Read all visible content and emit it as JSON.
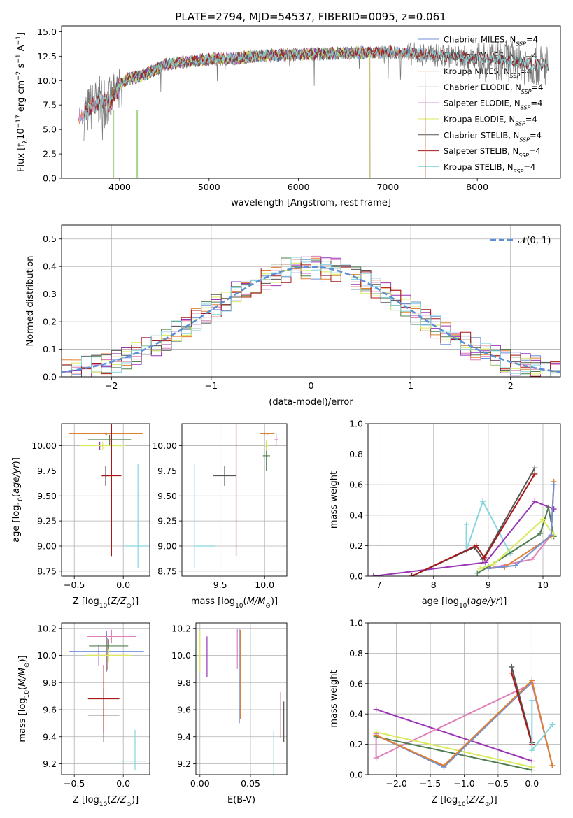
{
  "figure": {
    "title": "PLATE=2794, MJD=54537, FIBERID=0095, z=0.061"
  },
  "colors": {
    "Chabrier MILES": "#6f8fd9",
    "Salpeter MILES": "#e07fb8",
    "Kroupa MILES": "#e08030",
    "Chabrier ELODIE": "#4f7f4f",
    "Salpeter ELODIE": "#9a35b5",
    "Kroupa ELODIE": "#d9ea5a",
    "Chabrier STELIB": "#555555",
    "Salpeter STELIB": "#a81818",
    "Kroupa STELIB": "#85d6de",
    "data": "#777777",
    "gauss": "#5b8fd6"
  },
  "chart_data": [
    {
      "id": "spectrum",
      "type": "line",
      "title": "PLATE=2794, MJD=54537, FIBERID=0095, z=0.061",
      "xlabel": "wavelength [Angstrom, rest frame]",
      "ylabel_parts": [
        "Flux [f",
        "λ",
        "10",
        "−17",
        " erg cm",
        "−2",
        " s",
        "−1",
        " A",
        "−1",
        "]"
      ],
      "xlim": [
        3350,
        8930
      ],
      "ylim": [
        0,
        15.6
      ],
      "xticks": [
        4000,
        5000,
        6000,
        7000,
        8000
      ],
      "yticks": [
        0.0,
        2.5,
        5.0,
        7.5,
        10.0,
        12.5,
        15.0
      ],
      "grid": false,
      "legend_position": "top-right",
      "legend": [
        {
          "label": "Chabrier MILES",
          "suffix": "=4"
        },
        {
          "label": "Salpeter MILES",
          "suffix": "=4"
        },
        {
          "label": "Kroupa MILES",
          "suffix": "=4"
        },
        {
          "label": "Chabrier ELODIE",
          "suffix": "=4"
        },
        {
          "label": "Salpeter ELODIE",
          "suffix": "=4"
        },
        {
          "label": "Kroupa ELODIE",
          "suffix": "=4"
        },
        {
          "label": "Chabrier STELIB",
          "suffix": "=4"
        },
        {
          "label": "Salpeter STELIB",
          "suffix": "=4"
        },
        {
          "label": "Kroupa STELIB",
          "suffix": "=4"
        }
      ],
      "legend_n": "N",
      "legend_sub": "SSP",
      "continuum": [
        [
          3600,
          6.4
        ],
        [
          3700,
          7.5
        ],
        [
          3800,
          8.0
        ],
        [
          3900,
          7.8
        ],
        [
          4000,
          9.6
        ],
        [
          4100,
          10.2
        ],
        [
          4200,
          10.4
        ],
        [
          4300,
          10.7
        ],
        [
          4500,
          11.6
        ],
        [
          4700,
          11.9
        ],
        [
          5000,
          12.2
        ],
        [
          5200,
          12.2
        ],
        [
          5500,
          12.5
        ],
        [
          6000,
          12.7
        ],
        [
          6500,
          12.8
        ],
        [
          7000,
          12.9
        ],
        [
          7500,
          12.6
        ],
        [
          8000,
          12.3
        ],
        [
          8500,
          11.8
        ],
        [
          8800,
          11.5
        ]
      ],
      "model_ranges": {
        "MILES": [
          3540,
          7420
        ],
        "ELODIE": [
          3900,
          6800
        ],
        "STELIB": [
          3600,
          8800
        ]
      }
    },
    {
      "id": "residuals",
      "type": "line",
      "xlabel": "(data-model)/error",
      "ylabel": "Normed distribution",
      "xlim": [
        -2.5,
        2.5
      ],
      "ylim": [
        0,
        0.55
      ],
      "xticks": [
        -2,
        -1,
        0,
        1,
        2
      ],
      "yticks": [
        0.0,
        0.1,
        0.2,
        0.3,
        0.4,
        0.5
      ],
      "grid": true,
      "legend_position": "top-right",
      "legend": [
        "𝒩(0, 1)"
      ],
      "bin_width": 0.1
    },
    {
      "id": "z-age",
      "type": "scatter",
      "xlabel": "Z [log10(Z/Z⊙)]",
      "ylabel": "age  [log10(age/yr)]",
      "xlim": [
        -0.63,
        0.27
      ],
      "ylim": [
        8.7,
        10.22
      ],
      "xticks": [
        -0.5,
        0.0
      ],
      "yticks": [
        8.75,
        9.0,
        9.25,
        9.5,
        9.75,
        10.0
      ],
      "grid": true,
      "points": [
        {
          "model": "Chabrier MILES",
          "x": -0.17,
          "xerr": 0.37,
          "y": 10.12,
          "yerr": 0.01
        },
        {
          "model": "Salpeter MILES",
          "x": -0.18,
          "xerr": 0.28,
          "y": 10.12,
          "yerr": 0.01
        },
        {
          "model": "Kroupa MILES",
          "x": -0.18,
          "xerr": 0.38,
          "y": 10.12,
          "yerr": 0.01
        },
        {
          "model": "Chabrier ELODIE",
          "x": -0.14,
          "xerr": 0.22,
          "y": 10.06,
          "yerr": 0.05
        },
        {
          "model": "Salpeter ELODIE",
          "x": -0.24,
          "xerr": 0.01,
          "y": 10.0,
          "yerr": 0.04
        },
        {
          "model": "Kroupa ELODIE",
          "x": -0.21,
          "xerr": 0.23,
          "y": 10.0,
          "yerr": 0.04
        },
        {
          "model": "Chabrier STELIB",
          "x": -0.18,
          "xerr": 0.04,
          "y": 9.7,
          "yerr": 0.1
        },
        {
          "model": "Salpeter STELIB",
          "x": -0.12,
          "xerr": 0.1,
          "y": 9.7,
          "yerr": 0.8
        },
        {
          "model": "Kroupa STELIB",
          "x": 0.13,
          "xerr": 0.12,
          "y": 9.0,
          "yerr": 0.0
        },
        {
          "model": "Kroupa STELIB",
          "x": 0.15,
          "xerr": 0.0,
          "y": 9.3,
          "yerr": 0.52
        }
      ]
    },
    {
      "id": "mass-age",
      "type": "scatter",
      "xlabel": "mass [log10(M/M⊙)]",
      "ylabel": "",
      "xlim": [
        9.07,
        10.25
      ],
      "ylim": [
        8.7,
        10.22
      ],
      "xticks": [
        9.5,
        10.0
      ],
      "yticks": [
        8.75,
        9.0,
        9.25,
        9.5,
        9.75,
        10.0
      ],
      "grid": true,
      "points": [
        {
          "model": "Chabrier MILES",
          "x": 10.0,
          "xerr": 0.03,
          "y": 10.12,
          "yerr": 0.01
        },
        {
          "model": "Salpeter MILES",
          "x": 10.13,
          "xerr": 0.02,
          "y": 10.06,
          "yerr": 0.06
        },
        {
          "model": "Kroupa MILES",
          "x": 10.03,
          "xerr": 0.08,
          "y": 10.12,
          "yerr": 0.01
        },
        {
          "model": "Chabrier ELODIE",
          "x": 10.02,
          "xerr": 0.04,
          "y": 9.9,
          "yerr": 0.15
        },
        {
          "model": "Salpeter ELODIE",
          "x": 10.02,
          "xerr": 0.02,
          "y": 10.0,
          "yerr": 0.02
        },
        {
          "model": "Kroupa ELODIE",
          "x": 10.02,
          "xerr": 0.02,
          "y": 10.0,
          "yerr": 0.05
        },
        {
          "model": "Chabrier STELIB",
          "x": 9.55,
          "xerr": 0.13,
          "y": 9.7,
          "yerr": 0.1
        },
        {
          "model": "Salpeter STELIB",
          "x": 9.68,
          "xerr": 0.0,
          "y": 9.7,
          "yerr": 0.8
        },
        {
          "model": "Kroupa STELIB",
          "x": 9.21,
          "xerr": 0.0,
          "y": 9.3,
          "yerr": 0.52
        },
        {
          "model": "Kroupa STELIB",
          "x": 9.33,
          "xerr": 0.11,
          "y": 9.0,
          "yerr": 0.0
        }
      ]
    },
    {
      "id": "weight-age",
      "type": "line",
      "xlabel": "age  [log10(age/yr)]",
      "ylabel": "mass weight",
      "xlim": [
        6.8,
        10.32
      ],
      "ylim": [
        0,
        1.0
      ],
      "xticks": [
        7,
        8,
        9,
        10
      ],
      "yticks": [
        0.0,
        0.2,
        0.4,
        0.6,
        0.8,
        1.0
      ],
      "grid": true,
      "series": [
        {
          "model": "Kroupa STELIB",
          "x": [
            8.6,
            8.6,
            8.9,
            9.4
          ],
          "y": [
            0.34,
            0.17,
            0.49,
            0.15
          ]
        },
        {
          "model": "Salpeter ELODIE",
          "x": [
            6.9,
            8.95,
            9.85,
            10.2
          ],
          "y": [
            0.0,
            0.09,
            0.49,
            0.44
          ]
        },
        {
          "model": "Chabrier STELIB",
          "x": [
            7.6,
            8.75,
            8.9,
            9.85
          ],
          "y": [
            0.0,
            0.19,
            0.11,
            0.71
          ]
        },
        {
          "model": "Salpeter STELIB",
          "x": [
            7.6,
            8.78,
            8.93,
            9.85
          ],
          "y": [
            0.0,
            0.2,
            0.12,
            0.67
          ]
        },
        {
          "model": "Chabrier ELODIE",
          "x": [
            8.8,
            9.0,
            9.95,
            10.1,
            10.2
          ],
          "y": [
            0.02,
            0.06,
            0.28,
            0.45,
            0.26
          ]
        },
        {
          "model": "Kroupa ELODIE",
          "x": [
            8.85,
            9.1,
            10.0,
            10.2
          ],
          "y": [
            0.05,
            0.08,
            0.37,
            0.27
          ]
        },
        {
          "model": "Salpeter MILES",
          "x": [
            9.0,
            9.8,
            10.15,
            10.2
          ],
          "y": [
            0.05,
            0.11,
            0.27,
            0.6
          ]
        },
        {
          "model": "Kroupa MILES",
          "x": [
            9.0,
            9.3,
            10.15,
            10.2
          ],
          "y": [
            0.05,
            0.06,
            0.26,
            0.62
          ]
        },
        {
          "model": "Chabrier MILES",
          "x": [
            9.0,
            9.5,
            10.15,
            10.2
          ],
          "y": [
            0.05,
            0.07,
            0.27,
            0.6
          ]
        }
      ]
    },
    {
      "id": "z-mass",
      "type": "scatter",
      "xlabel": "Z [log10(Z/Z⊙)]",
      "ylabel": "mass [log10(M/M⊙)]",
      "xlim": [
        -0.63,
        0.27
      ],
      "ylim": [
        9.12,
        10.24
      ],
      "xticks": [
        -0.5,
        0.0
      ],
      "yticks": [
        9.2,
        9.4,
        9.6,
        9.8,
        10.0,
        10.2
      ],
      "grid": true,
      "points": [
        {
          "model": "Chabrier MILES",
          "x": -0.17,
          "xerr": 0.38,
          "y": 10.03,
          "yerr": 0.15
        },
        {
          "model": "Salpeter MILES",
          "x": -0.12,
          "xerr": 0.25,
          "y": 10.14,
          "yerr": 0.05
        },
        {
          "model": "Kroupa MILES",
          "x": -0.16,
          "xerr": 0.22,
          "y": 10.01,
          "yerr": 0.12
        },
        {
          "model": "Chabrier ELODIE",
          "x": -0.15,
          "xerr": 0.2,
          "y": 10.07,
          "yerr": 0.05
        },
        {
          "model": "Salpeter ELODIE",
          "x": -0.25,
          "xerr": 0.0,
          "y": 10.0,
          "yerr": 0.08
        },
        {
          "model": "Kroupa ELODIE",
          "x": -0.15,
          "xerr": 0.23,
          "y": 10.0,
          "yerr": 0.05
        },
        {
          "model": "Chabrier STELIB",
          "x": -0.2,
          "xerr": 0.16,
          "y": 9.56,
          "yerr": 0.2
        },
        {
          "model": "Salpeter STELIB",
          "x": -0.2,
          "xerr": 0.16,
          "y": 9.68,
          "yerr": 0.25
        },
        {
          "model": "Kroupa STELIB",
          "x": 0.1,
          "xerr": 0.12,
          "y": 9.22,
          "yerr": 0.0
        },
        {
          "model": "Kroupa STELIB",
          "x": 0.12,
          "xerr": 0.0,
          "y": 9.3,
          "yerr": 0.15
        }
      ]
    },
    {
      "id": "ebv-mass",
      "type": "scatter",
      "xlabel": "E(B-V)",
      "ylabel": "",
      "xlim": [
        -0.004,
        0.086
      ],
      "ylim": [
        9.12,
        10.24
      ],
      "xticks": [
        0.0,
        0.05
      ],
      "xtick_labels": [
        "0.00",
        "0.05"
      ],
      "yticks": [
        9.2,
        9.4,
        9.6,
        9.8,
        10.0,
        10.2
      ],
      "grid": true,
      "points": [
        {
          "model": "Kroupa ELODIE",
          "x": 0.0,
          "xerr": 0,
          "y": 10.03,
          "yerr": 0.15
        },
        {
          "model": "Salpeter ELODIE",
          "x": 0.007,
          "xerr": 0,
          "y": 9.99,
          "yerr": 0.15
        },
        {
          "model": "Salpeter MILES",
          "x": 0.037,
          "xerr": 0,
          "y": 10.05,
          "yerr": 0.15
        },
        {
          "model": "Chabrier MILES",
          "x": 0.039,
          "xerr": 0,
          "y": 9.85,
          "yerr": 0.35
        },
        {
          "model": "Kroupa MILES",
          "x": 0.04,
          "xerr": 0,
          "y": 9.86,
          "yerr": 0.33
        },
        {
          "model": "Kroupa STELIB",
          "x": 0.073,
          "xerr": 0,
          "y": 9.28,
          "yerr": 0.16
        },
        {
          "model": "Salpeter STELIB",
          "x": 0.08,
          "xerr": 0,
          "y": 9.56,
          "yerr": 0.17
        },
        {
          "model": "Chabrier STELIB",
          "x": 0.083,
          "xerr": 0,
          "y": 9.51,
          "yerr": 0.15
        }
      ]
    },
    {
      "id": "weight-z",
      "type": "line",
      "xlabel": "Z [log10(Z/Z⊙)]",
      "ylabel": "mass weight",
      "xlim": [
        -2.42,
        0.42
      ],
      "ylim": [
        0,
        1.0
      ],
      "xticks": [
        -2.0,
        -1.5,
        -1.0,
        -0.5,
        0.0
      ],
      "yticks": [
        0.0,
        0.2,
        0.4,
        0.6,
        0.8,
        1.0
      ],
      "grid": true,
      "series": [
        {
          "model": "Salpeter ELODIE",
          "x": [
            -2.3,
            0.0
          ],
          "y": [
            0.43,
            0.09
          ]
        },
        {
          "model": "Salpeter MILES",
          "x": [
            -2.3,
            -2.3,
            0.0,
            0.3
          ],
          "y": [
            0.27,
            0.11,
            0.6,
            0.06
          ]
        },
        {
          "model": "Kroupa ELODIE",
          "x": [
            -2.3,
            0.0
          ],
          "y": [
            0.28,
            0.05
          ]
        },
        {
          "model": "Chabrier ELODIE",
          "x": [
            -2.3,
            0.0
          ],
          "y": [
            0.25,
            0.03
          ]
        },
        {
          "model": "Chabrier MILES",
          "x": [
            -2.3,
            -1.3,
            0.0,
            0.3
          ],
          "y": [
            0.26,
            0.05,
            0.61,
            0.06
          ]
        },
        {
          "model": "Kroupa MILES",
          "x": [
            -2.3,
            -1.3,
            0.0,
            0.3
          ],
          "y": [
            0.26,
            0.06,
            0.62,
            0.06
          ]
        },
        {
          "model": "Chabrier STELIB",
          "x": [
            -0.3,
            0.0
          ],
          "y": [
            0.71,
            0.21
          ]
        },
        {
          "model": "Salpeter STELIB",
          "x": [
            -0.3,
            0.0
          ],
          "y": [
            0.67,
            0.2
          ]
        },
        {
          "model": "Kroupa STELIB",
          "x": [
            0.0,
            0.0,
            0.3
          ],
          "y": [
            0.49,
            0.16,
            0.33
          ]
        }
      ]
    }
  ]
}
